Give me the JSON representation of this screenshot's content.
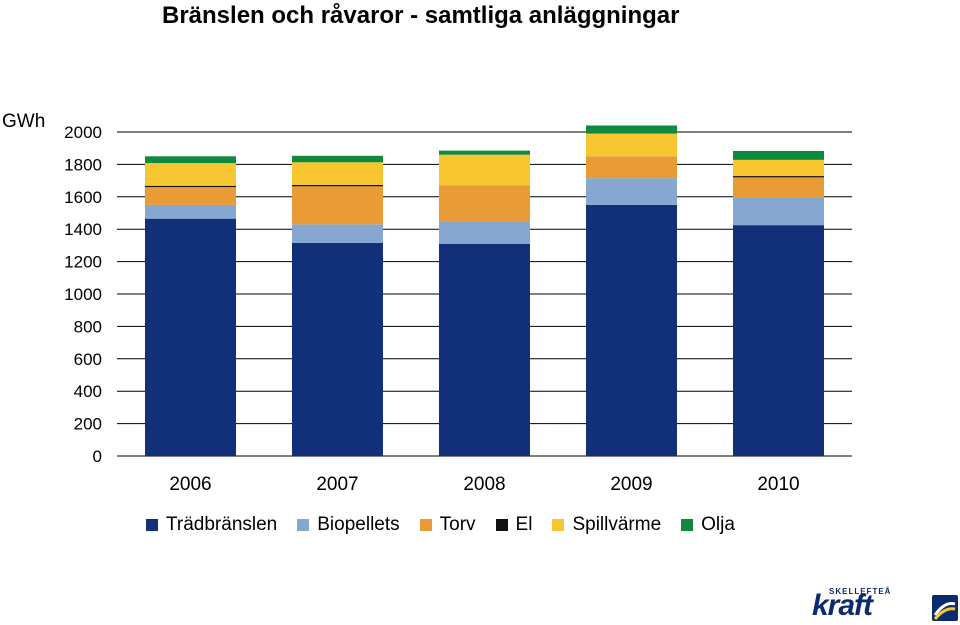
{
  "title": "Bränslen och råvaror - samtliga anläggningar",
  "logo": {
    "small_text": "SKELLEFTEÅ",
    "big_text": "kraft"
  },
  "chart_data": {
    "type": "bar",
    "stacked": true,
    "ylabel": "GWh",
    "ylim": [
      0,
      2000
    ],
    "yticks": [
      0,
      200,
      400,
      600,
      800,
      1000,
      1200,
      1400,
      1600,
      1800,
      2000
    ],
    "categories": [
      "2006",
      "2007",
      "2008",
      "2009",
      "2010"
    ],
    "series": [
      {
        "name": "Trädbränslen",
        "color": "#12307a",
        "values": [
          1465,
          1315,
          1310,
          1550,
          1425
        ]
      },
      {
        "name": "Biopellets",
        "color": "#86a7cf",
        "values": [
          85,
          115,
          140,
          165,
          170
        ]
      },
      {
        "name": "Torv",
        "color": "#e99b35",
        "values": [
          110,
          235,
          220,
          135,
          125
        ]
      },
      {
        "name": "El",
        "color": "#111111",
        "values": [
          8,
          8,
          0,
          0,
          8
        ]
      },
      {
        "name": "Spillvärme",
        "color": "#f8c630",
        "values": [
          140,
          140,
          190,
          140,
          100
        ]
      },
      {
        "name": "Olja",
        "color": "#0e8a3e",
        "values": [
          42,
          40,
          25,
          50,
          55
        ]
      }
    ],
    "legend_position": "bottom"
  }
}
